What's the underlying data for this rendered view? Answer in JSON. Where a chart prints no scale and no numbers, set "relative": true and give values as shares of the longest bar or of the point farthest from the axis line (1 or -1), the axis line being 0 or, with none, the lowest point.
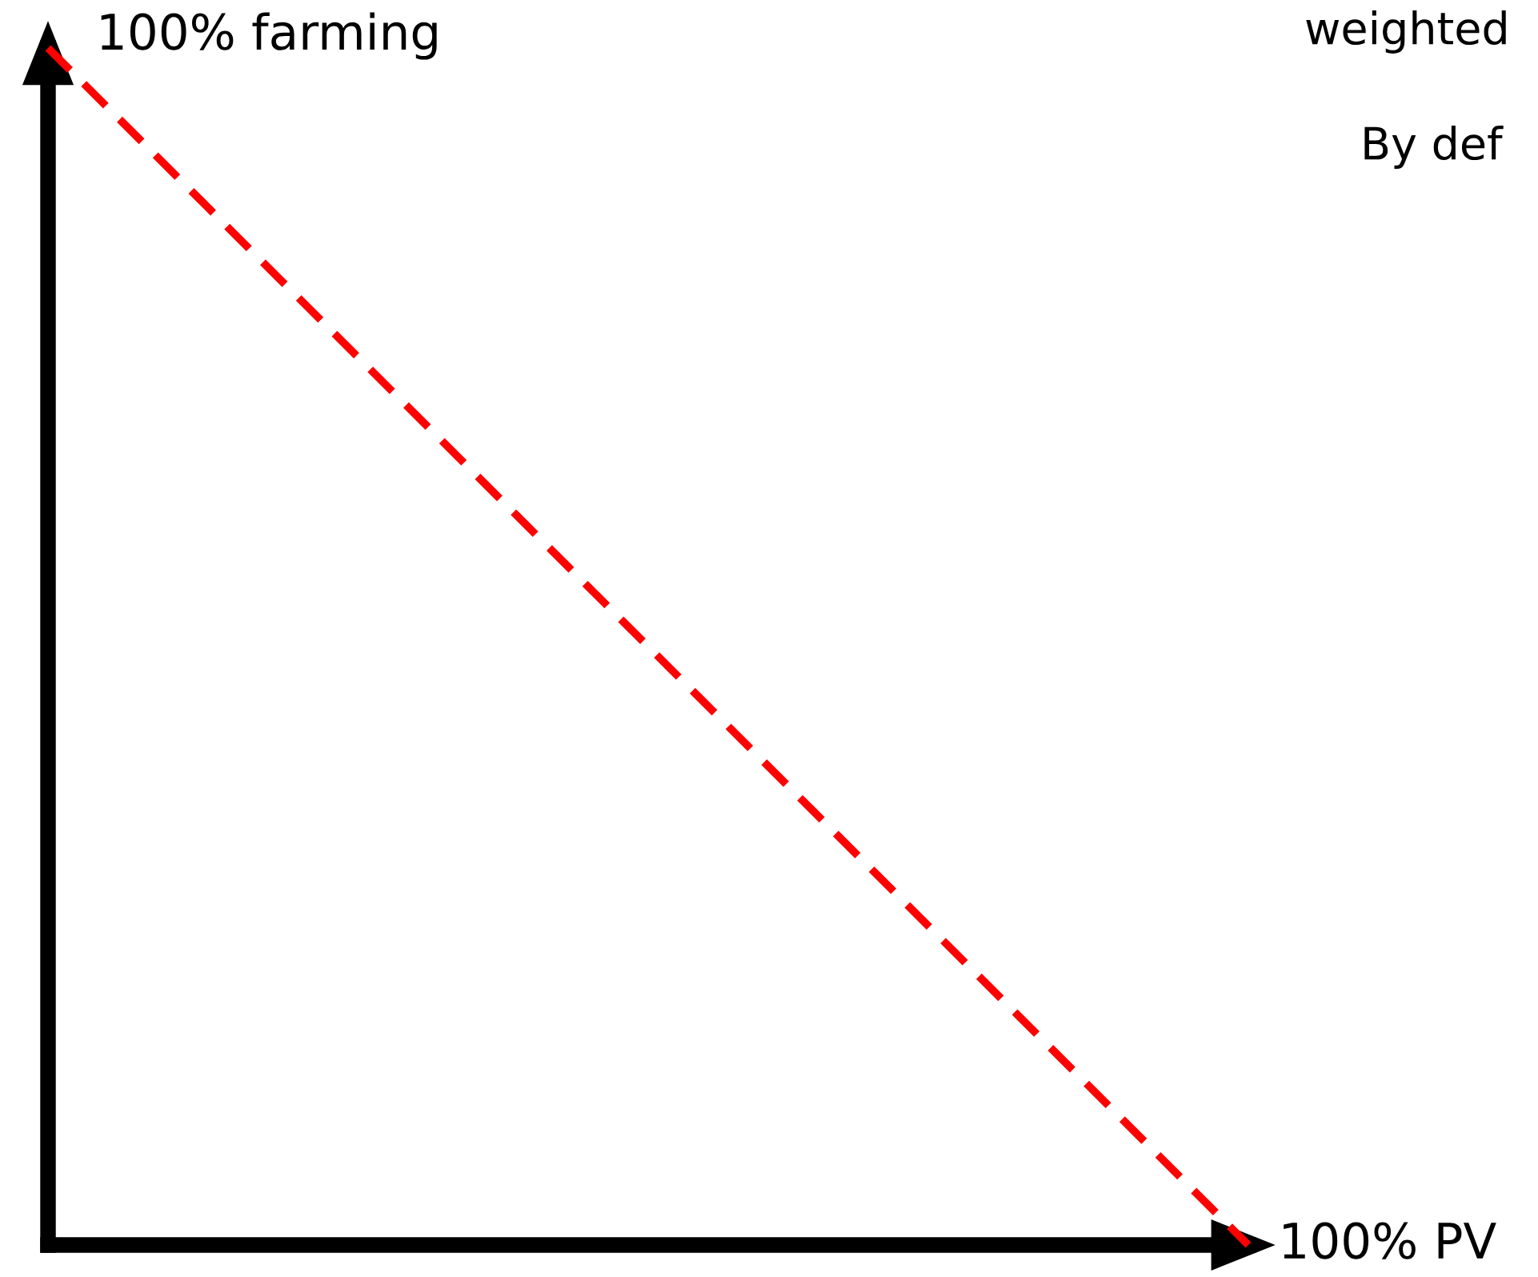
{
  "chart_data": {
    "type": "line",
    "relative": true,
    "xlabel": "100% PV",
    "ylabel": "100% farming",
    "categories": [
      null,
      null
    ],
    "series": [
      {
        "color": "#ff0000",
        "values": [
          1,
          0
        ]
      }
    ],
    "line_style": "dashed",
    "grid": false,
    "legend": false,
    "annotations": [
      "weighted",
      "By def"
    ]
  }
}
